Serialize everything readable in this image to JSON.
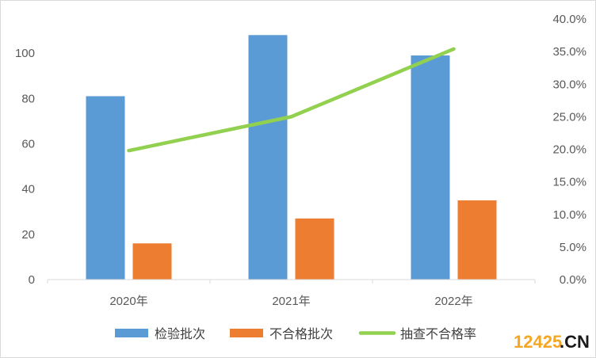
{
  "chart_data": {
    "type": "bar+line",
    "categories": [
      "2020年",
      "2021年",
      "2022年"
    ],
    "series": [
      {
        "name": "检验批次",
        "type": "bar",
        "axis": "left",
        "color": "#5B9BD5",
        "values": [
          81,
          108,
          99
        ]
      },
      {
        "name": "不合格批次",
        "type": "bar",
        "axis": "left",
        "color": "#ED7D31",
        "values": [
          16,
          27,
          35
        ]
      },
      {
        "name": "抽查不合格率",
        "type": "line",
        "axis": "right",
        "color": "#92D050",
        "values": [
          0.198,
          0.25,
          0.354
        ]
      }
    ],
    "y_left": {
      "ylim": [
        0,
        120
      ],
      "ticks": [
        0,
        20,
        40,
        60,
        80,
        100
      ],
      "tick_labels": [
        "0",
        "20",
        "40",
        "60",
        "80",
        "100"
      ]
    },
    "y_right": {
      "ylim": [
        0,
        0.4
      ],
      "ticks": [
        0,
        0.05,
        0.1,
        0.15,
        0.2,
        0.25,
        0.3,
        0.35,
        0.4
      ],
      "tick_labels": [
        "0.0%",
        "5.0%",
        "10.0%",
        "15.0%",
        "20.0%",
        "25.0%",
        "30.0%",
        "35.0%",
        "40.0%"
      ]
    },
    "grid": false,
    "legend_position": "bottom"
  },
  "watermark": {
    "num": "12425",
    "suffix": ".CN",
    "num_color": "#F5A623",
    "suffix_color": "#1A1A1A"
  }
}
